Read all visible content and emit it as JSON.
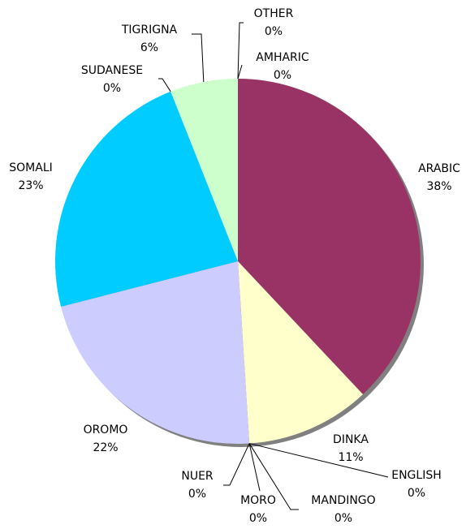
{
  "chart_data": {
    "type": "pie",
    "categories": [
      "AMHARIC",
      "ARABIC",
      "DINKA",
      "ENGLISH",
      "MANDINGO",
      "MORO",
      "NUER",
      "OROMO",
      "SOMALI",
      "SUDANESE",
      "TIGRIGNA",
      "OTHER"
    ],
    "values": [
      0,
      38,
      11,
      0,
      0,
      0,
      0,
      22,
      23,
      0,
      6,
      0
    ],
    "value_labels": [
      "0%",
      "38%",
      "11%",
      "0%",
      "0%",
      "0%",
      "0%",
      "22%",
      "23%",
      "0%",
      "6%",
      "0%"
    ],
    "colors": [
      "#9999ff",
      "#993366",
      "#ffffcc",
      "#ccffff",
      "#660066",
      "#ff8080",
      "#0066cc",
      "#ccccff",
      "#00ccff",
      "#000080",
      "#ccffcc",
      "#ff00ff"
    ]
  }
}
